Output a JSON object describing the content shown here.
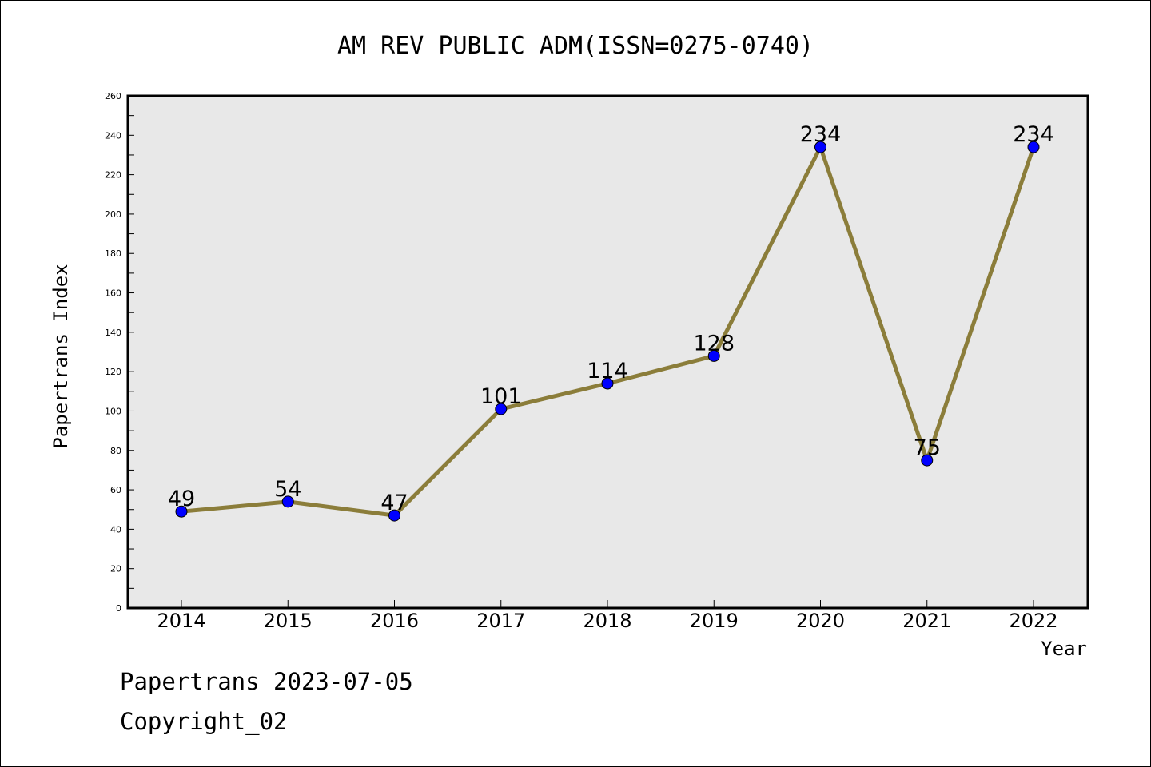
{
  "chart_data": {
    "type": "line",
    "title": "AM REV PUBLIC ADM(ISSN=0275-0740)",
    "xlabel": "Year",
    "ylabel": "Papertrans Index",
    "categories": [
      "2014",
      "2015",
      "2016",
      "2017",
      "2018",
      "2019",
      "2020",
      "2021",
      "2022"
    ],
    "series": [
      {
        "values": [
          49,
          54,
          47,
          101,
          114,
          128,
          234,
          75,
          234
        ],
        "line_color": "#8b7d3a",
        "marker_color": "#0000ff"
      }
    ],
    "ylim": [
      0,
      260
    ],
    "yticks": [
      0,
      20,
      40,
      60,
      80,
      100,
      120,
      140,
      160,
      180,
      200,
      220,
      240,
      260
    ],
    "plot_background": "#e8e8e8",
    "grid": false,
    "legend": "none",
    "data_labels": true
  },
  "footer": {
    "line1": "Papertrans 2023-07-05",
    "line2": "Copyright_02"
  }
}
